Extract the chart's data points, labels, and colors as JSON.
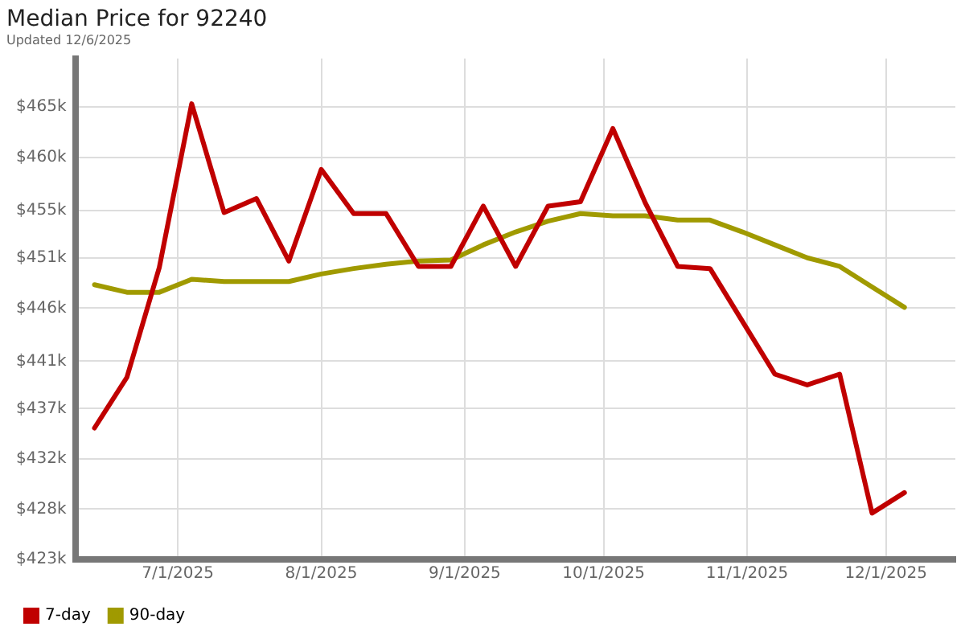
{
  "chart_data": {
    "type": "line",
    "title": "Median Price for 92240",
    "subtitle": "Updated 12/6/2025",
    "x": [
      "2025-06-13",
      "2025-06-20",
      "2025-06-27",
      "2025-07-04",
      "2025-07-11",
      "2025-07-18",
      "2025-07-25",
      "2025-08-01",
      "2025-08-08",
      "2025-08-15",
      "2025-08-22",
      "2025-08-29",
      "2025-09-05",
      "2025-09-12",
      "2025-09-19",
      "2025-09-26",
      "2025-10-03",
      "2025-10-10",
      "2025-10-17",
      "2025-10-24",
      "2025-10-31",
      "2025-11-07",
      "2025-11-14",
      "2025-11-21",
      "2025-11-28",
      "2025-12-05"
    ],
    "series": [
      {
        "name": "7-day",
        "color": "#c00000",
        "values": [
          435.2,
          439.9,
          450.1,
          465.3,
          455.2,
          456.5,
          450.7,
          459.2,
          455.1,
          455.1,
          450.2,
          450.2,
          455.8,
          450.2,
          455.8,
          456.2,
          463.0,
          456.1,
          450.2,
          450.0,
          445.1,
          440.2,
          439.2,
          440.2,
          427.3,
          429.2
        ]
      },
      {
        "name": "90-day",
        "color": "#a09a00",
        "values": [
          448.5,
          447.8,
          447.8,
          449.0,
          448.8,
          448.8,
          448.8,
          449.5,
          450.0,
          450.4,
          450.7,
          450.8,
          452.2,
          453.4,
          454.4,
          455.1,
          454.9,
          454.9,
          454.5,
          454.5,
          453.4,
          452.2,
          451.0,
          450.2,
          448.3,
          446.4
        ]
      }
    ],
    "xlim": [
      "2025-06-09",
      "2025-12-16"
    ],
    "xticks": [
      {
        "value": "2025-07-01",
        "label": "7/1/2025"
      },
      {
        "value": "2025-08-01",
        "label": "8/1/2025"
      },
      {
        "value": "2025-09-01",
        "label": "9/1/2025"
      },
      {
        "value": "2025-10-01",
        "label": "10/1/2025"
      },
      {
        "value": "2025-11-01",
        "label": "11/1/2025"
      },
      {
        "value": "2025-12-01",
        "label": "12/1/2025"
      }
    ],
    "ylim": [
      423,
      469.5
    ],
    "yticks": [
      {
        "value": 423,
        "label": "$423k"
      },
      {
        "value": 427.67,
        "label": "$428k"
      },
      {
        "value": 432.33,
        "label": "$432k"
      },
      {
        "value": 437,
        "label": "$437k"
      },
      {
        "value": 441.4,
        "label": "$441k"
      },
      {
        "value": 446.33,
        "label": "$446k"
      },
      {
        "value": 451,
        "label": "$451k"
      },
      {
        "value": 455.4,
        "label": "$455k"
      },
      {
        "value": 460.33,
        "label": "$460k"
      },
      {
        "value": 465,
        "label": "$465k"
      }
    ],
    "grid": true,
    "legend": "bottom left",
    "marker": "none",
    "line_style": "solid"
  }
}
